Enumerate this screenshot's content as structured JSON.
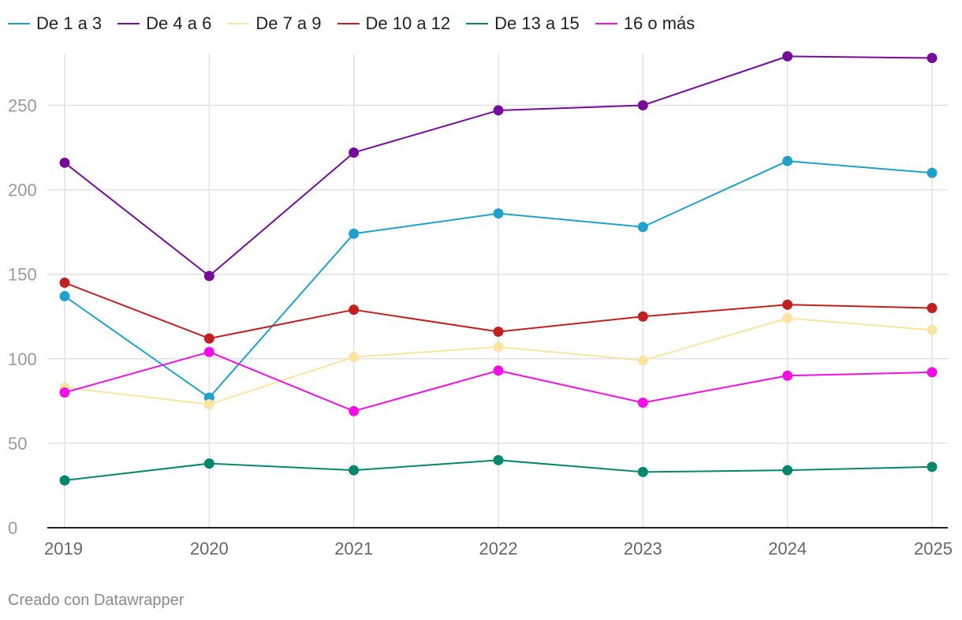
{
  "chart_data": {
    "type": "line",
    "title": "",
    "xlabel": "",
    "ylabel": "",
    "x": [
      "2019",
      "2020",
      "2021",
      "2022",
      "2023",
      "2024",
      "2025"
    ],
    "yticks": [
      0,
      50,
      100,
      150,
      200,
      250
    ],
    "ylim": [
      0,
      280
    ],
    "grid": true,
    "legend": "top-left",
    "series": [
      {
        "name": "De 1 a 3",
        "color": "#1ea1cc",
        "values": [
          137,
          77,
          174,
          186,
          178,
          217,
          210
        ]
      },
      {
        "name": "De 4 a 6",
        "color": "#760b9b",
        "values": [
          216,
          149,
          222,
          247,
          250,
          279,
          278
        ]
      },
      {
        "name": "De 7 a 9",
        "color": "#fbe3a0",
        "values": [
          83,
          73,
          101,
          107,
          99,
          124,
          117
        ]
      },
      {
        "name": "De 10 a 12",
        "color": "#c2201f",
        "values": [
          145,
          112,
          129,
          116,
          125,
          132,
          130
        ]
      },
      {
        "name": "De 13 a 15",
        "color": "#05876f",
        "values": [
          28,
          38,
          34,
          40,
          33,
          34,
          36
        ]
      },
      {
        "name": "16 o más",
        "color": "#f20ee4",
        "values": [
          80,
          104,
          69,
          93,
          74,
          90,
          92
        ]
      }
    ]
  },
  "footer": {
    "credit": "Creado con Datawrapper"
  }
}
